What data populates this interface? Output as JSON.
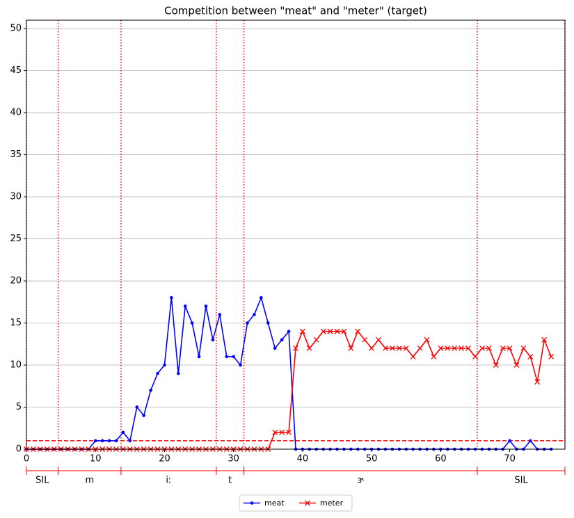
{
  "chart_data": {
    "type": "line",
    "title": "Competition between \"meat\" and \"meter\" (target)",
    "x": [
      0,
      1,
      2,
      3,
      4,
      5,
      6,
      7,
      8,
      9,
      10,
      11,
      12,
      13,
      14,
      15,
      16,
      17,
      18,
      19,
      20,
      21,
      22,
      23,
      24,
      25,
      26,
      27,
      28,
      29,
      30,
      31,
      32,
      33,
      34,
      35,
      36,
      37,
      38,
      39,
      40,
      41,
      42,
      43,
      44,
      45,
      46,
      47,
      48,
      49,
      50,
      51,
      52,
      53,
      54,
      55,
      56,
      57,
      58,
      59,
      60,
      61,
      62,
      63,
      64,
      65,
      66,
      67,
      68,
      69,
      70,
      71,
      72,
      73,
      74,
      75,
      76
    ],
    "series": [
      {
        "name": "meat",
        "color": "#0000ff",
        "marker": "dot",
        "values": [
          0,
          0,
          0,
          0,
          0,
          0,
          0,
          0,
          0,
          0,
          1,
          1,
          1,
          1,
          2,
          1,
          5,
          4,
          7,
          9,
          10,
          18,
          9,
          17,
          15,
          11,
          17,
          13,
          16,
          11,
          11,
          10,
          15,
          16,
          18,
          15,
          12,
          13,
          14,
          0,
          0,
          0,
          0,
          0,
          0,
          0,
          0,
          0,
          0,
          0,
          0,
          0,
          0,
          0,
          0,
          0,
          0,
          0,
          0,
          0,
          0,
          0,
          0,
          0,
          0,
          0,
          0,
          0,
          0,
          0,
          1,
          0,
          0,
          1,
          0,
          0,
          0
        ]
      },
      {
        "name": "meter",
        "color": "#ff0000",
        "marker": "x",
        "values": [
          0,
          0,
          0,
          0,
          0,
          0,
          0,
          0,
          0,
          0,
          0,
          0,
          0,
          0,
          0,
          0,
          0,
          0,
          0,
          0,
          0,
          0,
          0,
          0,
          0,
          0,
          0,
          0,
          0,
          0,
          0,
          0,
          0,
          0,
          0,
          0,
          2,
          2,
          2,
          12,
          14,
          12,
          13,
          14,
          14,
          14,
          14,
          12,
          14,
          13,
          12,
          13,
          12,
          12,
          12,
          12,
          11,
          12,
          13,
          11,
          12,
          12,
          12,
          12,
          12,
          11,
          12,
          12,
          10,
          12,
          12,
          10,
          12,
          11,
          8,
          13,
          11
        ]
      }
    ],
    "threshold": 1,
    "segments": [
      {
        "label": "SIL",
        "start": 0,
        "end": 4.6
      },
      {
        "label": "m",
        "start": 4.6,
        "end": 13.7
      },
      {
        "label": "iː",
        "start": 13.7,
        "end": 27.5
      },
      {
        "label": "t",
        "start": 27.5,
        "end": 31.5
      },
      {
        "label": "ɝ",
        "start": 31.5,
        "end": 65.3
      },
      {
        "label": "SIL",
        "start": 65.3,
        "end": 78
      }
    ],
    "xlim": [
      0,
      78
    ],
    "ylim": [
      0,
      51
    ],
    "xticks": [
      0,
      10,
      20,
      30,
      40,
      50,
      60,
      70
    ],
    "yticks": [
      0,
      5,
      10,
      15,
      20,
      25,
      30,
      35,
      40,
      45,
      50
    ],
    "grid": true,
    "legend": "bottom"
  }
}
